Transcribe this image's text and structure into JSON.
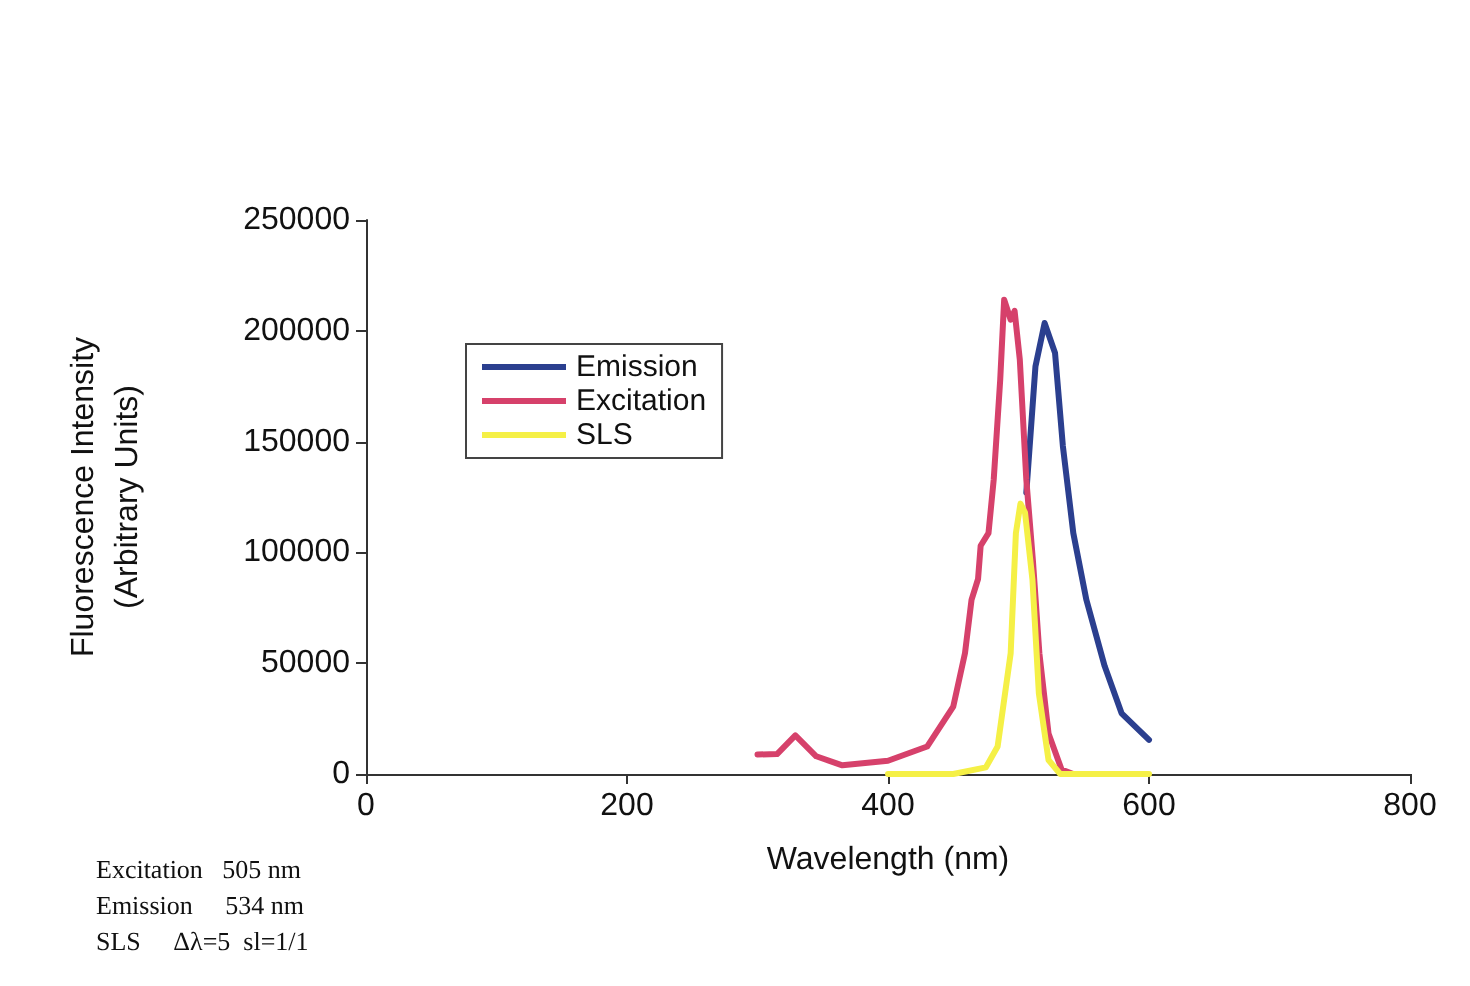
{
  "chart_data": {
    "type": "line",
    "xlabel": "Wavelength (nm)",
    "ylabel": "Fluorescence Intensity\n(Arbitrary Units)",
    "xlim": [
      0,
      800
    ],
    "xticks": [
      0,
      200,
      400,
      600,
      800
    ],
    "ylim": [
      0,
      250000
    ],
    "yticks": [
      0,
      50000,
      100000,
      150000,
      200000,
      250000
    ],
    "grid": false,
    "legend": "top left",
    "marker": "none",
    "line_style": "solid",
    "annotations": [
      "Excitation   505 nm",
      "Emission     534 nm",
      "SLS     Δλ=5  sl=1/1"
    ],
    "series": [
      {
        "name": "Emission",
        "color": "#2b3f8f",
        "x": [
          506,
          513,
          520,
          528,
          534,
          542,
          552,
          566,
          579,
          600
        ],
        "values": [
          127000,
          184000,
          203500,
          190000,
          148000,
          108700,
          78600,
          48700,
          27400,
          15400
        ]
      },
      {
        "name": "Excitation",
        "color": "#d6416b",
        "x": [
          300,
          315,
          329,
          345,
          365,
          400,
          430,
          450,
          459,
          464,
          469,
          471,
          477,
          481,
          486,
          489,
          494,
          497,
          501,
          506,
          511,
          516,
          523,
          533,
          542
        ],
        "values": [
          8800,
          9000,
          17400,
          8000,
          3900,
          6000,
          12400,
          30400,
          54500,
          78600,
          88000,
          103000,
          108700,
          132800,
          178000,
          214000,
          205000,
          209000,
          187000,
          132800,
          96700,
          54500,
          18300,
          2000,
          0
        ]
      },
      {
        "name": "SLS",
        "color": "#f5f046",
        "x": [
          400,
          450,
          475,
          484,
          494,
          498,
          501.5,
          505,
          510.7,
          515.6,
          523,
          532,
          600
        ],
        "values": [
          0,
          0,
          3000,
          12400,
          54500,
          108700,
          122000,
          118000,
          87600,
          36400,
          6300,
          0,
          0
        ]
      }
    ]
  }
}
